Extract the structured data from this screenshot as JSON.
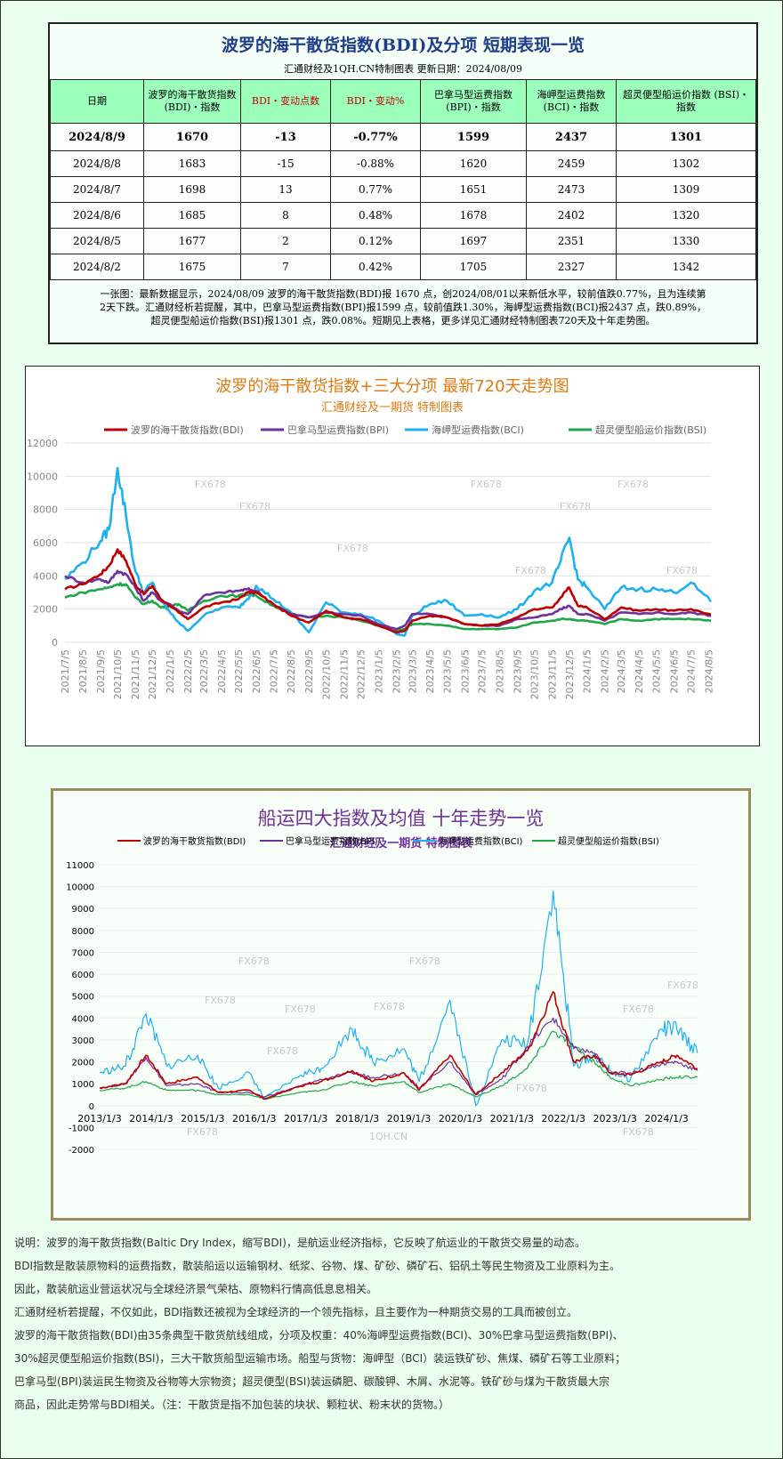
{
  "summary": {
    "title": "波罗的海干散货指数(BDI)及分项 短期表现一览",
    "subtitle": "汇通财经及1QH.CN特制图表 更新日期：2024/08/09",
    "headers": [
      "日期",
      "波罗的海干散货指数 (BDI)・指数",
      "BDI・变动点数",
      "BDI・变动%",
      "巴拿马型运费指数 (BPI)・指数",
      "海岬型运费指数 (BCI)・指数",
      "超灵便型船运价指数 (BSI)・指数"
    ],
    "rows": [
      [
        "2024/8/9",
        "1670",
        "-13",
        "-0.77%",
        "1599",
        "2437",
        "1301"
      ],
      [
        "2024/8/8",
        "1683",
        "-15",
        "-0.88%",
        "1620",
        "2459",
        "1302"
      ],
      [
        "2024/8/7",
        "1698",
        "13",
        "0.77%",
        "1651",
        "2473",
        "1309"
      ],
      [
        "2024/8/6",
        "1685",
        "8",
        "0.48%",
        "1678",
        "2402",
        "1320"
      ],
      [
        "2024/8/5",
        "1677",
        "2",
        "0.12%",
        "1697",
        "2351",
        "1330"
      ],
      [
        "2024/8/2",
        "1675",
        "7",
        "0.42%",
        "1705",
        "2327",
        "1342"
      ]
    ],
    "note_lines": [
      "一张图：最新数据显示，2024/08/09 波罗的海干散货指数(BDI)报 1670 点，创2024/08/01以来新低水平，较前值跌0.77%，且为连续第",
      "2天下跌。汇通财经析若提醒，其中，巴拿马型运费指数(BPI)报1599 点，较前值跌1.30%，海岬型运费指数(BCI)报2437 点，跌0.89%，",
      "超灵便型船运价指数(BSI)报1301 点，跌0.08%。短期见上表格，更多详见汇通财经特制图表720天及十年走势图。"
    ]
  },
  "watermark": "FX678",
  "watermark2": "1QH.CN",
  "colors": {
    "bdi": "#c00000",
    "bpi": "#7030a0",
    "bci": "#1fb0f0",
    "bsi": "#20a848"
  },
  "chart_data": [
    {
      "type": "line",
      "title": "波罗的海干散货指数+三大分项 最新720天走势图",
      "subtitle": "汇通财经及一期货 特制图表",
      "legend": [
        "波罗的海干散货指数(BDI)",
        "巴拿马型运费指数(BPI)",
        "海岬型运费指数(BCI)",
        "超灵便型船运价指数(BSI)"
      ],
      "legend_position": "top",
      "ylim": [
        0,
        12000
      ],
      "yticks": [
        "0",
        "2000",
        "4000",
        "6000",
        "8000",
        "10000",
        "12000"
      ],
      "xticks": [
        "2021/7/5",
        "2021/8/5",
        "2021/9/5",
        "2021/10/5",
        "2021/11/5",
        "2021/12/5",
        "2022/1/5",
        "2022/2/5",
        "2022/3/5",
        "2022/4/5",
        "2022/5/5",
        "2022/6/5",
        "2022/7/5",
        "2022/8/5",
        "2022/9/5",
        "2022/10/5",
        "2022/11/5",
        "2022/12/5",
        "2023/1/5",
        "2023/2/5",
        "2023/3/5",
        "2023/4/5",
        "2023/5/5",
        "2023/6/5",
        "2023/7/5",
        "2023/8/5",
        "2023/9/5",
        "2023/10/5",
        "2023/11/5",
        "2023/12/5",
        "2024/1/5",
        "2024/2/5",
        "2024/3/5",
        "2024/4/5",
        "2024/5/5",
        "2024/6/5",
        "2024/7/5",
        "2024/8/5"
      ],
      "grid": true,
      "x_dates": [
        "2021/7/5",
        "2021/8/5",
        "2021/9/5",
        "2021/9/20",
        "2021/10/5",
        "2021/10/20",
        "2021/11/5",
        "2021/11/20",
        "2021/12/5",
        "2021/12/20",
        "2022/1/5",
        "2022/1/20",
        "2022/2/5",
        "2022/3/5",
        "2022/4/5",
        "2022/5/5",
        "2022/5/20",
        "2022/6/5",
        "2022/7/5",
        "2022/8/5",
        "2022/9/5",
        "2022/10/5",
        "2022/11/5",
        "2022/12/5",
        "2023/1/5",
        "2023/2/5",
        "2023/2/20",
        "2023/3/5",
        "2023/4/5",
        "2023/5/5",
        "2023/6/5",
        "2023/7/5",
        "2023/8/5",
        "2023/9/5",
        "2023/10/5",
        "2023/11/5",
        "2023/11/20",
        "2023/12/5",
        "2023/12/20",
        "2024/1/5",
        "2024/2/5",
        "2024/3/5",
        "2024/4/5",
        "2024/5/5",
        "2024/6/5",
        "2024/7/5",
        "2024/8/9"
      ],
      "series": [
        {
          "name": "波罗的海干散货指数(BDI)",
          "values": [
            3200,
            3500,
            4100,
            4600,
            5600,
            4900,
            3500,
            2900,
            3400,
            2600,
            2200,
            1800,
            1400,
            2100,
            2400,
            2600,
            3000,
            3000,
            2300,
            1600,
            1200,
            1900,
            1500,
            1400,
            1000,
            600,
            700,
            1300,
            1600,
            1500,
            1100,
            1000,
            1100,
            1500,
            2000,
            2100,
            2700,
            3300,
            2200,
            2100,
            1400,
            2100,
            1900,
            2000,
            1900,
            2000,
            1670
          ]
        },
        {
          "name": "巴拿马型运费指数(BPI)",
          "values": [
            4000,
            3600,
            3800,
            3600,
            4300,
            4100,
            3300,
            2500,
            3000,
            2500,
            2300,
            1900,
            1700,
            2800,
            3000,
            3100,
            3200,
            3100,
            2300,
            1700,
            1500,
            1800,
            1700,
            1600,
            1100,
            800,
            1000,
            1700,
            1700,
            1500,
            1100,
            1000,
            1000,
            1400,
            1500,
            1700,
            2000,
            2200,
            1700,
            1700,
            1300,
            1800,
            1700,
            1800,
            1700,
            1800,
            1599
          ]
        },
        {
          "name": "海岬型运费指数(BCI)",
          "values": [
            3800,
            4800,
            6100,
            6800,
            10500,
            7600,
            4300,
            3000,
            3600,
            2500,
            1800,
            1200,
            700,
            1600,
            2100,
            2100,
            2600,
            3400,
            2600,
            1800,
            600,
            2400,
            1800,
            1700,
            1300,
            500,
            400,
            1600,
            2300,
            2500,
            1600,
            1700,
            1500,
            2000,
            3100,
            3600,
            4900,
            6300,
            3800,
            3300,
            2000,
            3300,
            3200,
            3200,
            3000,
            3600,
            2437
          ]
        },
        {
          "name": "超灵便型船运价指数(BSI)",
          "values": [
            2700,
            3000,
            3200,
            3300,
            3500,
            3500,
            2700,
            2300,
            2500,
            2100,
            2200,
            2300,
            1900,
            2500,
            2800,
            2800,
            2900,
            2800,
            2200,
            1700,
            1500,
            1600,
            1500,
            1300,
            1000,
            700,
            800,
            1100,
            1100,
            1000,
            800,
            800,
            800,
            900,
            1200,
            1300,
            1400,
            1400,
            1300,
            1300,
            1100,
            1400,
            1300,
            1400,
            1400,
            1400,
            1301
          ]
        }
      ]
    },
    {
      "type": "line",
      "title": "船运四大指数及均值 十年走势一览",
      "subtitle": "汇通财经及一期货 特制图表",
      "legend": [
        "波罗的海干散货指数(BDI)",
        "巴拿马型运费指数(BPI)",
        "海岬型运费指数(BCI)",
        "超灵便型船运价指数(BSI)"
      ],
      "legend_position": "top",
      "ylim": [
        -2000,
        11000
      ],
      "yticks": [
        "-2000",
        "-1000",
        "0",
        "1000",
        "2000",
        "3000",
        "4000",
        "5000",
        "6000",
        "7000",
        "8000",
        "9000",
        "10000",
        "11000"
      ],
      "xticks": [
        "2013/1/3",
        "2014/1/3",
        "2015/1/3",
        "2016/1/3",
        "2017/1/3",
        "2018/1/3",
        "2019/1/3",
        "2020/1/3",
        "2021/1/3",
        "2022/1/3",
        "2023/1/3",
        "2024/1/3"
      ],
      "grid": true,
      "x_years": [
        2013.0,
        2013.5,
        2013.9,
        2014.3,
        2014.9,
        2015.3,
        2015.9,
        2016.2,
        2016.9,
        2017.3,
        2017.9,
        2018.3,
        2018.9,
        2019.2,
        2019.8,
        2020.3,
        2020.8,
        2021.3,
        2021.8,
        2022.2,
        2022.6,
        2022.9,
        2023.3,
        2023.9,
        2024.2,
        2024.6
      ],
      "series": [
        {
          "name": "波罗的海干散货指数(BDI)",
          "values": [
            800,
            1000,
            2300,
            1000,
            1300,
            600,
            700,
            300,
            900,
            1100,
            1600,
            1100,
            1500,
            700,
            2300,
            500,
            1500,
            2500,
            5200,
            2000,
            2300,
            1500,
            1400,
            2000,
            2300,
            1700
          ]
        },
        {
          "name": "巴拿马型运费指数(BPI)",
          "values": [
            800,
            1000,
            2200,
            900,
            1000,
            600,
            600,
            400,
            900,
            1200,
            1500,
            1300,
            1500,
            800,
            2000,
            500,
            1200,
            2700,
            4000,
            2600,
            2400,
            1500,
            1500,
            1900,
            2000,
            1600
          ]
        },
        {
          "name": "海岬型运费指数(BCI)",
          "values": [
            1500,
            1800,
            4200,
            1800,
            2300,
            800,
            1500,
            300,
            1400,
            1700,
            3500,
            2000,
            2600,
            1100,
            4800,
            0,
            3000,
            2800,
            9800,
            1800,
            2300,
            1600,
            1200,
            3500,
            3500,
            2400
          ]
        },
        {
          "name": "超灵便型船运价指数(BSI)",
          "values": [
            700,
            800,
            1100,
            700,
            700,
            500,
            500,
            300,
            600,
            700,
            1100,
            900,
            1100,
            600,
            1000,
            400,
            900,
            1700,
            3400,
            2700,
            2000,
            1300,
            900,
            1200,
            1300,
            1300
          ]
        }
      ]
    }
  ],
  "explanation": [
    "说明：波罗的海干散货指数(Baltic Dry Index，缩写BDI)，是航运业经济指标，它反映了航运业的干散货交易量的动态。",
    "BDI指数是散装原物料的运费指数，散装船运以运输钢材、纸浆、谷物、煤、矿砂、磷矿石、铝矾土等民生物资及工业原料为主。",
    "因此，散装航运业营运状况与全球经济景气荣枯、原物料行情高低息息相关。",
    "汇通财经析若提醒，不仅如此，BDI指数还被视为全球经济的一个领先指标，且主要作为一种期货交易的工具而被创立。",
    "波罗的海干散货指数(BDI)由35条典型干散货航线组成，分项及权重：40%海岬型运费指数(BCI)、30%巴拿马型运费指数(BPI)、",
    "30%超灵便型船运价指数(BSI)，三大干散货船型运输市场。船型与货物：海岬型（BCI）装运铁矿砂、焦煤、磷矿石等工业原料；",
    "巴拿马型(BPI)装运民生物资及谷物等大宗物资；超灵便型(BSI)装运磷肥、碳酸钾、木屑、水泥等。铁矿砂与煤为干散货最大宗",
    "商品，因此走势常与BDI相关。（注：干散货是指不加包装的块状、颗粒状、粉末状的货物。）"
  ]
}
